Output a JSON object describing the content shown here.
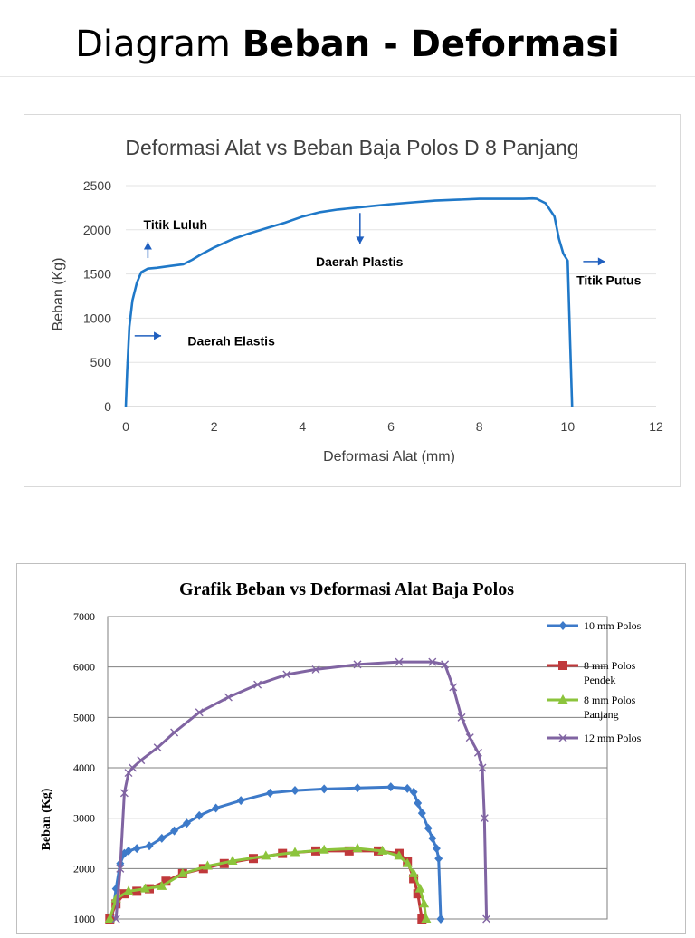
{
  "slide": {
    "title_regular": "Diagram ",
    "title_bold": "Beban - Deformasi"
  },
  "colors": {
    "chart1_line": "#1f78c8",
    "arrow": "#1f5fbf",
    "series_10mm": "#3d7ac9",
    "series_8mm_pendek": "#c0393b",
    "series_8mm_panjang": "#8cc43c",
    "series_12mm": "#8064a2"
  },
  "chart_data": [
    {
      "type": "line",
      "title": "Deformasi Alat vs Beban Baja Polos D 8 Panjang",
      "xlabel": "Deformasi Alat (mm)",
      "ylabel": "Beban (Kg)",
      "xlim": [
        0,
        12
      ],
      "ylim": [
        0,
        2500
      ],
      "xticks": [
        "0",
        "2",
        "4",
        "6",
        "8",
        "10",
        "12"
      ],
      "yticks": [
        "0",
        "500",
        "1000",
        "1500",
        "2000",
        "2500"
      ],
      "grid": true,
      "series": [
        {
          "x": [
            0,
            0.03,
            0.08,
            0.15,
            0.25,
            0.35,
            0.5,
            0.7,
            1.0,
            1.3,
            1.5,
            1.7,
            2.0,
            2.4,
            2.8,
            3.2,
            3.6,
            4.0,
            4.4,
            4.8,
            5.2,
            5.6,
            6.0,
            6.5,
            7.0,
            7.5,
            8.0,
            8.5,
            9.0,
            9.2,
            9.3,
            9.5,
            9.7,
            9.8,
            9.9,
            10.0,
            10.05,
            10.1
          ],
          "y": [
            0,
            400,
            900,
            1200,
            1400,
            1520,
            1560,
            1570,
            1590,
            1610,
            1660,
            1720,
            1800,
            1890,
            1960,
            2020,
            2080,
            2150,
            2200,
            2230,
            2250,
            2270,
            2290,
            2310,
            2330,
            2340,
            2350,
            2350,
            2350,
            2355,
            2350,
            2300,
            2150,
            1900,
            1730,
            1650,
            800,
            0
          ]
        }
      ],
      "annotations": [
        {
          "text": "Titik Luluh",
          "x": 0.4,
          "y": 2010
        },
        {
          "text": "Daerah Plastis",
          "x": 4.3,
          "y": 1590
        },
        {
          "text": "Titik Putus",
          "x": 10.2,
          "y": 1380
        },
        {
          "text": "Daerah Elastis",
          "x": 1.4,
          "y": 690
        }
      ]
    },
    {
      "type": "line",
      "title": "Grafik Beban vs Deformasi Alat Baja Polos",
      "ylabel": "Beban (Kg)",
      "ylim": [
        1000,
        7000
      ],
      "xlim": [
        0,
        12
      ],
      "yticks": [
        "7000",
        "6000",
        "5000",
        "4000",
        "3000",
        "2000",
        "1000"
      ],
      "grid": true,
      "legend": "right",
      "series": [
        {
          "name": "10 mm Polos",
          "marker": "diamond",
          "x": [
            0.1,
            0.2,
            0.3,
            0.4,
            0.5,
            0.7,
            1.0,
            1.3,
            1.6,
            1.9,
            2.2,
            2.6,
            3.2,
            3.9,
            4.5,
            5.2,
            6.0,
            6.8,
            7.2,
            7.35,
            7.45,
            7.55,
            7.7,
            7.8,
            7.9,
            7.95,
            8.0
          ],
          "y": [
            1000,
            1600,
            2100,
            2300,
            2350,
            2400,
            2450,
            2600,
            2750,
            2900,
            3050,
            3200,
            3350,
            3500,
            3550,
            3580,
            3600,
            3620,
            3590,
            3520,
            3300,
            3100,
            2800,
            2600,
            2400,
            2200,
            1000
          ]
        },
        {
          "name": "8 mm Polos Pendek",
          "marker": "square",
          "x": [
            0.05,
            0.2,
            0.4,
            0.7,
            1.0,
            1.4,
            1.8,
            2.3,
            2.8,
            3.5,
            4.2,
            5.0,
            5.8,
            6.5,
            7.0,
            7.2,
            7.35,
            7.45,
            7.55
          ],
          "y": [
            1000,
            1300,
            1500,
            1550,
            1600,
            1750,
            1900,
            2000,
            2100,
            2200,
            2300,
            2350,
            2350,
            2350,
            2300,
            2150,
            1800,
            1500,
            1000
          ]
        },
        {
          "name": "8 mm Polos Panjang",
          "marker": "triangle",
          "x": [
            0.05,
            0.2,
            0.5,
            0.9,
            1.3,
            1.8,
            2.4,
            3.0,
            3.8,
            4.5,
            5.2,
            6.0,
            6.6,
            7.0,
            7.2,
            7.35,
            7.5,
            7.6,
            7.65
          ],
          "y": [
            1000,
            1400,
            1550,
            1600,
            1650,
            1900,
            2050,
            2150,
            2250,
            2320,
            2370,
            2400,
            2350,
            2250,
            2100,
            1900,
            1600,
            1300,
            1000
          ]
        },
        {
          "name": "12 mm Polos",
          "marker": "x",
          "x": [
            0.2,
            0.3,
            0.4,
            0.5,
            0.6,
            0.8,
            1.2,
            1.6,
            2.2,
            2.9,
            3.6,
            4.3,
            5.0,
            6.0,
            7.0,
            7.8,
            8.1,
            8.3,
            8.5,
            8.7,
            8.9,
            9.0,
            9.05,
            9.1
          ],
          "y": [
            1000,
            2000,
            3500,
            3900,
            4000,
            4150,
            4400,
            4700,
            5100,
            5400,
            5650,
            5850,
            5950,
            6050,
            6100,
            6100,
            6050,
            5600,
            5000,
            4600,
            4300,
            4000,
            3000,
            1000
          ]
        }
      ]
    }
  ]
}
